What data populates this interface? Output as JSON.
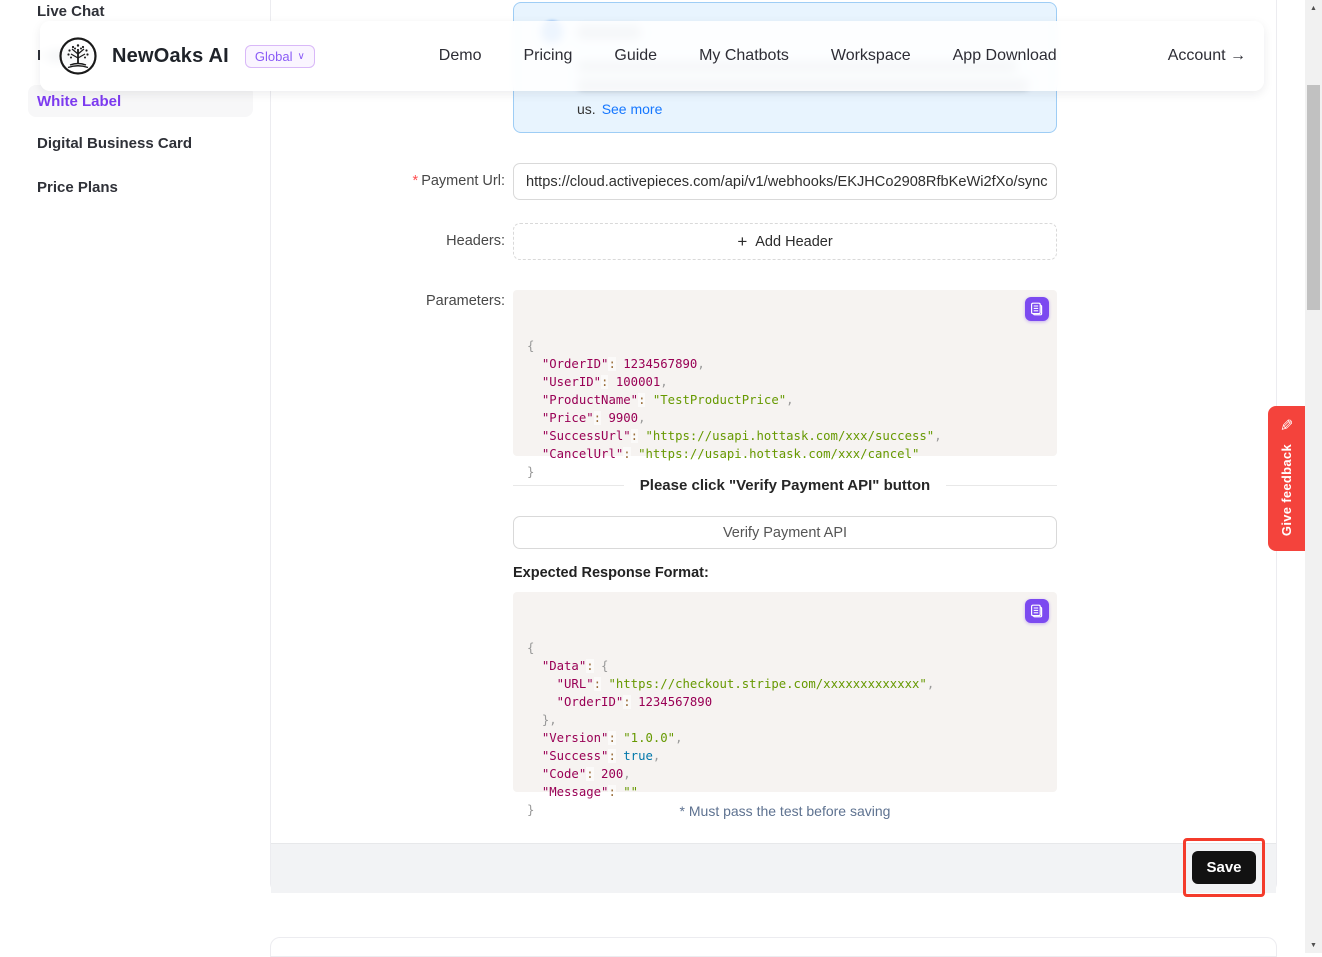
{
  "nav": {
    "brand": "NewOaks AI",
    "region": "Global",
    "links": [
      "Demo",
      "Pricing",
      "Guide",
      "My Chatbots",
      "Workspace",
      "App Download"
    ],
    "account": "Account →"
  },
  "icons": {
    "chevron_down": "∨",
    "plus": "+",
    "pencil": "✎",
    "scroll_up": "▲",
    "scroll_down": "▼"
  },
  "sidebar": {
    "items": [
      {
        "label": "Live Chat"
      },
      {
        "label": "I"
      },
      {
        "label": "White Label",
        "active": true
      },
      {
        "label": "Digital Business Card"
      },
      {
        "label": "Price Plans"
      }
    ]
  },
  "reminder": {
    "tail_text": "us.",
    "link_text": "See more"
  },
  "form": {
    "payment_url_label": "Payment Url:",
    "required_mark": "*",
    "payment_url_value": "https://cloud.activepieces.com/api/v1/webhooks/EKJHCo2908RfbKeWi2fXo/sync",
    "headers_label": "Headers:",
    "add_header_label": "Add Header",
    "parameters_label": "Parameters:",
    "divider_text": "Please click \"Verify Payment API\" button",
    "verify_button_label": "Verify Payment API",
    "expected_response_label": "Expected Response Format:",
    "note": "* Must pass the test before saving",
    "save_label": "Save"
  },
  "feedback": {
    "label": "Give feedback"
  },
  "colors": {
    "accent_purple": "#7d3bf0",
    "copy_button": "#7c4af0",
    "link_blue": "#1677ff",
    "reminder_bg": "#e8f4fe",
    "reminder_border": "#9ecdf5",
    "feedback_red": "#f4433c",
    "annotation_red": "#f43b2b",
    "save_black": "#121212",
    "token_key": "#990055",
    "token_string": "#669900",
    "token_boolean": "#0077aa"
  },
  "code_blocks": {
    "parameters": [
      [
        [
          "p",
          "{"
        ]
      ],
      [
        [
          "t",
          "  "
        ],
        [
          "k",
          "\"OrderID\""
        ],
        [
          "o",
          ":"
        ],
        [
          "t",
          " "
        ],
        [
          "n",
          "1234567890"
        ],
        [
          "p",
          ","
        ]
      ],
      [
        [
          "t",
          "  "
        ],
        [
          "k",
          "\"UserID\""
        ],
        [
          "o",
          ":"
        ],
        [
          "t",
          " "
        ],
        [
          "n",
          "100001"
        ],
        [
          "p",
          ","
        ]
      ],
      [
        [
          "t",
          "  "
        ],
        [
          "k",
          "\"ProductName\""
        ],
        [
          "o",
          ":"
        ],
        [
          "t",
          " "
        ],
        [
          "s",
          "\"TestProductPrice\""
        ],
        [
          "p",
          ","
        ]
      ],
      [
        [
          "t",
          "  "
        ],
        [
          "k",
          "\"Price\""
        ],
        [
          "o",
          ":"
        ],
        [
          "t",
          " "
        ],
        [
          "n",
          "9900"
        ],
        [
          "p",
          ","
        ]
      ],
      [
        [
          "t",
          "  "
        ],
        [
          "k",
          "\"SuccessUrl\""
        ],
        [
          "o",
          ":"
        ],
        [
          "t",
          " "
        ],
        [
          "s",
          "\"https://usapi.hottask.com/xxx/success\""
        ],
        [
          "p",
          ","
        ]
      ],
      [
        [
          "t",
          "  "
        ],
        [
          "k",
          "\"CancelUrl\""
        ],
        [
          "o",
          ":"
        ],
        [
          "t",
          " "
        ],
        [
          "s",
          "\"https://usapi.hottask.com/xxx/cancel\""
        ]
      ],
      [
        [
          "p",
          "}"
        ]
      ]
    ],
    "response": [
      [
        [
          "p",
          "{"
        ]
      ],
      [
        [
          "t",
          "  "
        ],
        [
          "k",
          "\"Data\""
        ],
        [
          "o",
          ":"
        ],
        [
          "t",
          " "
        ],
        [
          "p",
          "{"
        ]
      ],
      [
        [
          "t",
          "    "
        ],
        [
          "k",
          "\"URL\""
        ],
        [
          "o",
          ":"
        ],
        [
          "t",
          " "
        ],
        [
          "s",
          "\"https://checkout.stripe.com/xxxxxxxxxxxxx\""
        ],
        [
          "p",
          ","
        ]
      ],
      [
        [
          "t",
          "    "
        ],
        [
          "k",
          "\"OrderID\""
        ],
        [
          "o",
          ":"
        ],
        [
          "t",
          " "
        ],
        [
          "n",
          "1234567890"
        ]
      ],
      [
        [
          "t",
          "  "
        ],
        [
          "p",
          "},"
        ]
      ],
      [
        [
          "t",
          "  "
        ],
        [
          "k",
          "\"Version\""
        ],
        [
          "o",
          ":"
        ],
        [
          "t",
          " "
        ],
        [
          "s",
          "\"1.0.0\""
        ],
        [
          "p",
          ","
        ]
      ],
      [
        [
          "t",
          "  "
        ],
        [
          "k",
          "\"Success\""
        ],
        [
          "o",
          ":"
        ],
        [
          "t",
          " "
        ],
        [
          "b",
          "true"
        ],
        [
          "p",
          ","
        ]
      ],
      [
        [
          "t",
          "  "
        ],
        [
          "k",
          "\"Code\""
        ],
        [
          "o",
          ":"
        ],
        [
          "t",
          " "
        ],
        [
          "n",
          "200"
        ],
        [
          "p",
          ","
        ]
      ],
      [
        [
          "t",
          "  "
        ],
        [
          "k",
          "\"Message\""
        ],
        [
          "o",
          ":"
        ],
        [
          "t",
          " "
        ],
        [
          "s",
          "\"\""
        ]
      ],
      [
        [
          "p",
          "}"
        ]
      ]
    ]
  }
}
